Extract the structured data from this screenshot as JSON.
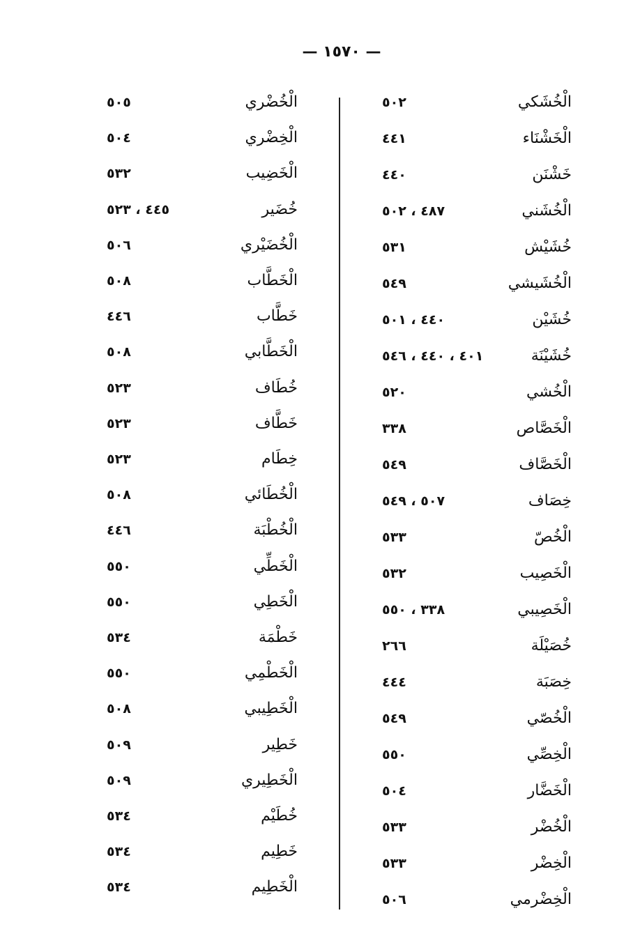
{
  "page_number": "— ١٥٧٠ —",
  "right_column": [
    {
      "name": "الْخُشَكي",
      "pages": "٥٠٢"
    },
    {
      "name": "الْخَشْنَاء",
      "pages": "٤٤١"
    },
    {
      "name": "خَشْنَن",
      "pages": "٤٤٠"
    },
    {
      "name": "الْخُشَني",
      "pages": "٤٨٧ ، ٥٠٢"
    },
    {
      "name": "خُشَيْش",
      "pages": "٥٣١"
    },
    {
      "name": "الْخُشَيشي",
      "pages": "٥٤٩"
    },
    {
      "name": "خُشَيْن",
      "pages": "٤٤٠ ، ٥٠١"
    },
    {
      "name": "خُشَيْنَة",
      "pages": "٤٠١ ، ٤٤٠ ، ٥٤٦"
    },
    {
      "name": "الْخُشي",
      "pages": "٥٢٠"
    },
    {
      "name": "الْخَصَّاص",
      "pages": "٣٣٨"
    },
    {
      "name": "الْخَصَّاف",
      "pages": "٥٤٩"
    },
    {
      "name": "خِصَاف",
      "pages": "٥٠٧ ، ٥٤٩"
    },
    {
      "name": "الْخُصّ",
      "pages": "٥٣٣"
    },
    {
      "name": "الْخَصِيب",
      "pages": "٥٣٢"
    },
    {
      "name": "الْخَصِيبي",
      "pages": "٣٣٨ ، ٥٥٠"
    },
    {
      "name": "خُصَيْلَة",
      "pages": "٢٦٦"
    },
    {
      "name": "خِصَبَة",
      "pages": "٤٤٤"
    },
    {
      "name": "الْخُصّي",
      "pages": "٥٤٩"
    },
    {
      "name": "الْخِصِّي",
      "pages": "٥٥٠"
    },
    {
      "name": "الْخَضَّار",
      "pages": "٥٠٤"
    },
    {
      "name": "الْخُضْر",
      "pages": "٥٣٣"
    },
    {
      "name": "الْخِضْر",
      "pages": "٥٣٣"
    },
    {
      "name": "الْخِضْرمي",
      "pages": "٥٠٦"
    }
  ],
  "left_column": [
    {
      "name": "الْخُضْري",
      "pages": "٥٠٥"
    },
    {
      "name": "الْخِضْري",
      "pages": "٥٠٤"
    },
    {
      "name": "الْخَضِيب",
      "pages": "٥٣٢"
    },
    {
      "name": "خُضَير",
      "pages": "٤٤٥ ، ٥٢٣"
    },
    {
      "name": "الْخُضَيْري",
      "pages": "٥٠٦"
    },
    {
      "name": "الْخَطَّاب",
      "pages": "٥٠٨"
    },
    {
      "name": "خَطَّاب",
      "pages": "٤٤٦"
    },
    {
      "name": "الْخَطَّابي",
      "pages": "٥٠٨"
    },
    {
      "name": "خُطَاف",
      "pages": "٥٢٣"
    },
    {
      "name": "خَطَّاف",
      "pages": "٥٢٣"
    },
    {
      "name": "خِطَام",
      "pages": "٥٢٣"
    },
    {
      "name": "الْخُطَائي",
      "pages": "٥٠٨"
    },
    {
      "name": "الْخُطْبَة",
      "pages": "٤٤٦"
    },
    {
      "name": "الْخَطِّي",
      "pages": "٥٥٠"
    },
    {
      "name": "الْخَطِي",
      "pages": "٥٥٠"
    },
    {
      "name": "خَطْمَة",
      "pages": "٥٣٤"
    },
    {
      "name": "الْخَطْمِي",
      "pages": "٥٥٠"
    },
    {
      "name": "الْخَطِيبي",
      "pages": "٥٠٨"
    },
    {
      "name": "خَطِير",
      "pages": "٥٠٩"
    },
    {
      "name": "الْخَطِيري",
      "pages": "٥٠٩"
    },
    {
      "name": "خُطَيْم",
      "pages": "٥٣٤"
    },
    {
      "name": "خَطِيم",
      "pages": "٥٣٤"
    },
    {
      "name": "الْخَطِيم",
      "pages": "٥٣٤"
    }
  ]
}
